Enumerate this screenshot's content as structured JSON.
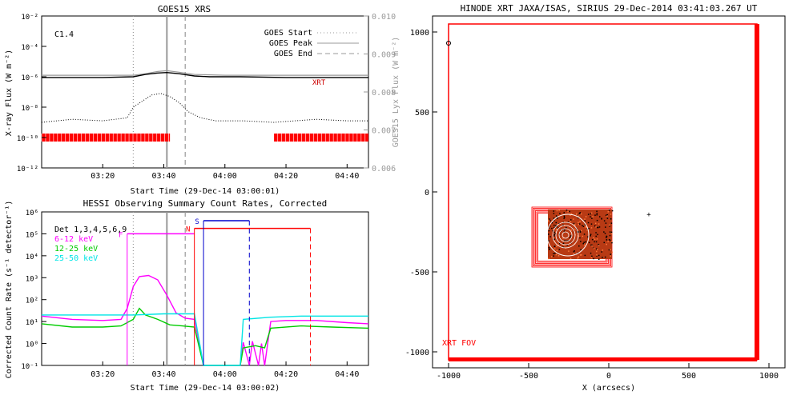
{
  "chart_data": [
    {
      "id": "goes",
      "type": "line",
      "title": "GOES15 XRS",
      "xlabel": "Start Time (29-Dec-14 03:00:01)",
      "ylabel": "X-ray Flux (W m⁻²)",
      "y2label": "GOES15 Lyx Flux (W m⁻²)",
      "flare_class": "C1.4",
      "xlim_min": [
        0,
        107
      ],
      "ylim_exp": [
        -12,
        -2
      ],
      "y2lim": [
        0.006,
        0.01
      ],
      "x_ticks": [
        {
          "t": 20,
          "label": "03:20"
        },
        {
          "t": 40,
          "label": "03:40"
        },
        {
          "t": 60,
          "label": "04:00"
        },
        {
          "t": 80,
          "label": "04:20"
        },
        {
          "t": 100,
          "label": "04:40"
        }
      ],
      "y_ticks": [
        {
          "e": -2,
          "label": "10⁻²"
        },
        {
          "e": -4,
          "label": "10⁻⁴"
        },
        {
          "e": -6,
          "label": "10⁻⁶"
        },
        {
          "e": -8,
          "label": "10⁻⁸"
        },
        {
          "e": -10,
          "label": "10⁻¹⁰"
        },
        {
          "e": -12,
          "label": "10⁻¹²"
        }
      ],
      "y2_ticks": [
        "0.006",
        "0.007",
        "0.008",
        "0.009",
        "0.010"
      ],
      "y2_tick_values": [
        0.006,
        0.007,
        0.008,
        0.009,
        0.01
      ],
      "event_lines": [
        {
          "name": "GOES Start",
          "t": 30,
          "style": "dotted",
          "color": "#999999"
        },
        {
          "name": "GOES Peak",
          "t": 41,
          "style": "solid",
          "color": "#999999"
        },
        {
          "name": "GOES End",
          "t": 47,
          "style": "dashed",
          "color": "#999999"
        }
      ],
      "legend": [
        "GOES Start",
        "GOES Peak",
        "GOES End"
      ],
      "xrt_label": "XRT",
      "xrt_intervals": [
        [
          0,
          42
        ],
        [
          76,
          107
        ]
      ],
      "long_channel": [
        [
          0,
          -6.05
        ],
        [
          20,
          -6.05
        ],
        [
          30,
          -6.0
        ],
        [
          34,
          -5.85
        ],
        [
          38,
          -5.75
        ],
        [
          41,
          -5.72
        ],
        [
          45,
          -5.8
        ],
        [
          50,
          -5.95
        ],
        [
          55,
          -6.0
        ],
        [
          65,
          -6.0
        ],
        [
          80,
          -6.05
        ],
        [
          107,
          -6.05
        ]
      ],
      "lyx_channel": [
        [
          0,
          -5.9
        ],
        [
          30,
          -5.9
        ],
        [
          34,
          -5.8
        ],
        [
          38,
          -5.65
        ],
        [
          41,
          -5.6
        ],
        [
          45,
          -5.7
        ],
        [
          50,
          -5.85
        ],
        [
          60,
          -5.9
        ],
        [
          107,
          -5.9
        ]
      ],
      "short_channel": [
        [
          0,
          -9.0
        ],
        [
          10,
          -8.8
        ],
        [
          20,
          -8.9
        ],
        [
          28,
          -8.7
        ],
        [
          30,
          -8.0
        ],
        [
          33,
          -7.6
        ],
        [
          36,
          -7.2
        ],
        [
          39,
          -7.1
        ],
        [
          42,
          -7.3
        ],
        [
          45,
          -7.7
        ],
        [
          48,
          -8.3
        ],
        [
          52,
          -8.7
        ],
        [
          57,
          -8.9
        ],
        [
          66,
          -8.9
        ],
        [
          76,
          -9.0
        ],
        [
          90,
          -8.8
        ],
        [
          100,
          -8.9
        ],
        [
          107,
          -8.9
        ]
      ]
    },
    {
      "id": "hessi",
      "type": "line",
      "title": "HESSI Observing Summary Count Rates, Corrected",
      "xlabel": "Start Time (29-Dec-14 03:00:02)",
      "ylabel": "Corrected Count Rate (s⁻¹ detector⁻¹)",
      "detectors": "Det 1,3,4,5,6,9",
      "xlim_min": [
        0,
        107
      ],
      "ylim_exp": [
        -1,
        6
      ],
      "x_ticks": [
        {
          "t": 20,
          "label": "03:20"
        },
        {
          "t": 40,
          "label": "03:40"
        },
        {
          "t": 60,
          "label": "04:00"
        },
        {
          "t": 80,
          "label": "04:20"
        },
        {
          "t": 100,
          "label": "04:40"
        }
      ],
      "y_ticks": [
        {
          "e": -1,
          "label": "10⁻¹"
        },
        {
          "e": 0,
          "label": "10⁰"
        },
        {
          "e": 1,
          "label": "10¹"
        },
        {
          "e": 2,
          "label": "10²"
        },
        {
          "e": 3,
          "label": "10³"
        },
        {
          "e": 4,
          "label": "10⁴"
        },
        {
          "e": 5,
          "label": "10⁵"
        },
        {
          "e": 6,
          "label": "10⁶"
        }
      ],
      "series": [
        {
          "name": "6-12 keV",
          "color": "#ff00ff",
          "values": [
            [
              0,
              1.25
            ],
            [
              10,
              1.1
            ],
            [
              20,
              1.05
            ],
            [
              26,
              1.1
            ],
            [
              28,
              1.6
            ],
            [
              30,
              2.6
            ],
            [
              32,
              3.05
            ],
            [
              35,
              3.1
            ],
            [
              38,
              2.9
            ],
            [
              41,
              2.2
            ],
            [
              44,
              1.4
            ],
            [
              47,
              1.15
            ],
            [
              50,
              1.1
            ],
            [
              53,
              -1
            ],
            [
              65,
              -1
            ],
            [
              66,
              0.05
            ],
            [
              68,
              -1
            ],
            [
              69,
              0.1
            ],
            [
              71,
              -1
            ],
            [
              72,
              0.0
            ],
            [
              73,
              -1
            ],
            [
              75,
              1.0
            ],
            [
              80,
              1.05
            ],
            [
              90,
              1.05
            ],
            [
              100,
              0.95
            ],
            [
              107,
              0.9
            ]
          ]
        },
        {
          "name": "12-25 keV",
          "color": "#00cc00",
          "values": [
            [
              0,
              0.9
            ],
            [
              10,
              0.75
            ],
            [
              20,
              0.75
            ],
            [
              26,
              0.8
            ],
            [
              30,
              1.1
            ],
            [
              32,
              1.6
            ],
            [
              34,
              1.3
            ],
            [
              38,
              1.1
            ],
            [
              42,
              0.85
            ],
            [
              46,
              0.8
            ],
            [
              50,
              0.75
            ],
            [
              53,
              -1
            ],
            [
              65,
              -1
            ],
            [
              66,
              -0.2
            ],
            [
              70,
              -0.1
            ],
            [
              73,
              -0.2
            ],
            [
              75,
              0.7
            ],
            [
              85,
              0.8
            ],
            [
              95,
              0.75
            ],
            [
              107,
              0.7
            ]
          ]
        },
        {
          "name": "25-50 keV",
          "color": "#00e5e5",
          "values": [
            [
              0,
              1.3
            ],
            [
              10,
              1.3
            ],
            [
              20,
              1.3
            ],
            [
              30,
              1.3
            ],
            [
              40,
              1.35
            ],
            [
              50,
              1.35
            ],
            [
              53,
              -1
            ],
            [
              65,
              -1
            ],
            [
              66,
              1.1
            ],
            [
              75,
              1.2
            ],
            [
              85,
              1.25
            ],
            [
              107,
              1.25
            ]
          ]
        }
      ],
      "event_lines": [
        {
          "name": "GOES Start",
          "t": 30,
          "style": "dotted",
          "color": "#999999"
        },
        {
          "name": "GOES Peak",
          "t": 41,
          "style": "solid",
          "color": "#999999"
        },
        {
          "name": "GOES End",
          "t": 47,
          "style": "dashed",
          "color": "#999999"
        }
      ],
      "flag_bars": [
        {
          "label": "F",
          "color": "#ff00ff",
          "t0": 28,
          "t1": 50,
          "e": 5.0
        },
        {
          "label": "N",
          "color": "#ff0000",
          "t0": 50,
          "t1": 88,
          "e": 5.25,
          "t_end_line": 88
        },
        {
          "label": "S",
          "color": "#0000cc",
          "t0": 53,
          "t1": 68,
          "e": 5.6,
          "t_end_line": 68
        }
      ]
    },
    {
      "id": "xrt",
      "type": "scatter",
      "title": "HINODE XRT JAXA/ISAS, SIRIUS 29-Dec-2014 03:41:03.267 UT",
      "xlabel": "X (arcsecs)",
      "ylabel": "",
      "xlim": [
        -1100,
        1100
      ],
      "ylim": [
        -1100,
        1100
      ],
      "x_ticks": [
        {
          "v": -1000,
          "label": "-1000"
        },
        {
          "v": -500,
          "label": "-500"
        },
        {
          "v": 0,
          "label": "0"
        },
        {
          "v": 500,
          "label": "500"
        },
        {
          "v": 1000,
          "label": "1000"
        }
      ],
      "y_ticks": [
        {
          "v": -1000,
          "label": "-1000"
        },
        {
          "v": -500,
          "label": "-500"
        },
        {
          "v": 0,
          "label": "0"
        },
        {
          "v": 500,
          "label": "500"
        },
        {
          "v": 1000,
          "label": "1000"
        }
      ],
      "fov_label": "XRT FOV",
      "fov_color": "#ff0000",
      "fov_box": [
        -1000,
        -1050,
        925,
        1050
      ],
      "subfield_box": [
        -480,
        -470,
        20,
        -95
      ],
      "image_box": [
        -380,
        -420,
        20,
        -110
      ],
      "target_center": [
        -270,
        -270
      ],
      "marker_circle": [
        -1000,
        930
      ],
      "marker_plus": [
        250,
        -140
      ]
    }
  ]
}
